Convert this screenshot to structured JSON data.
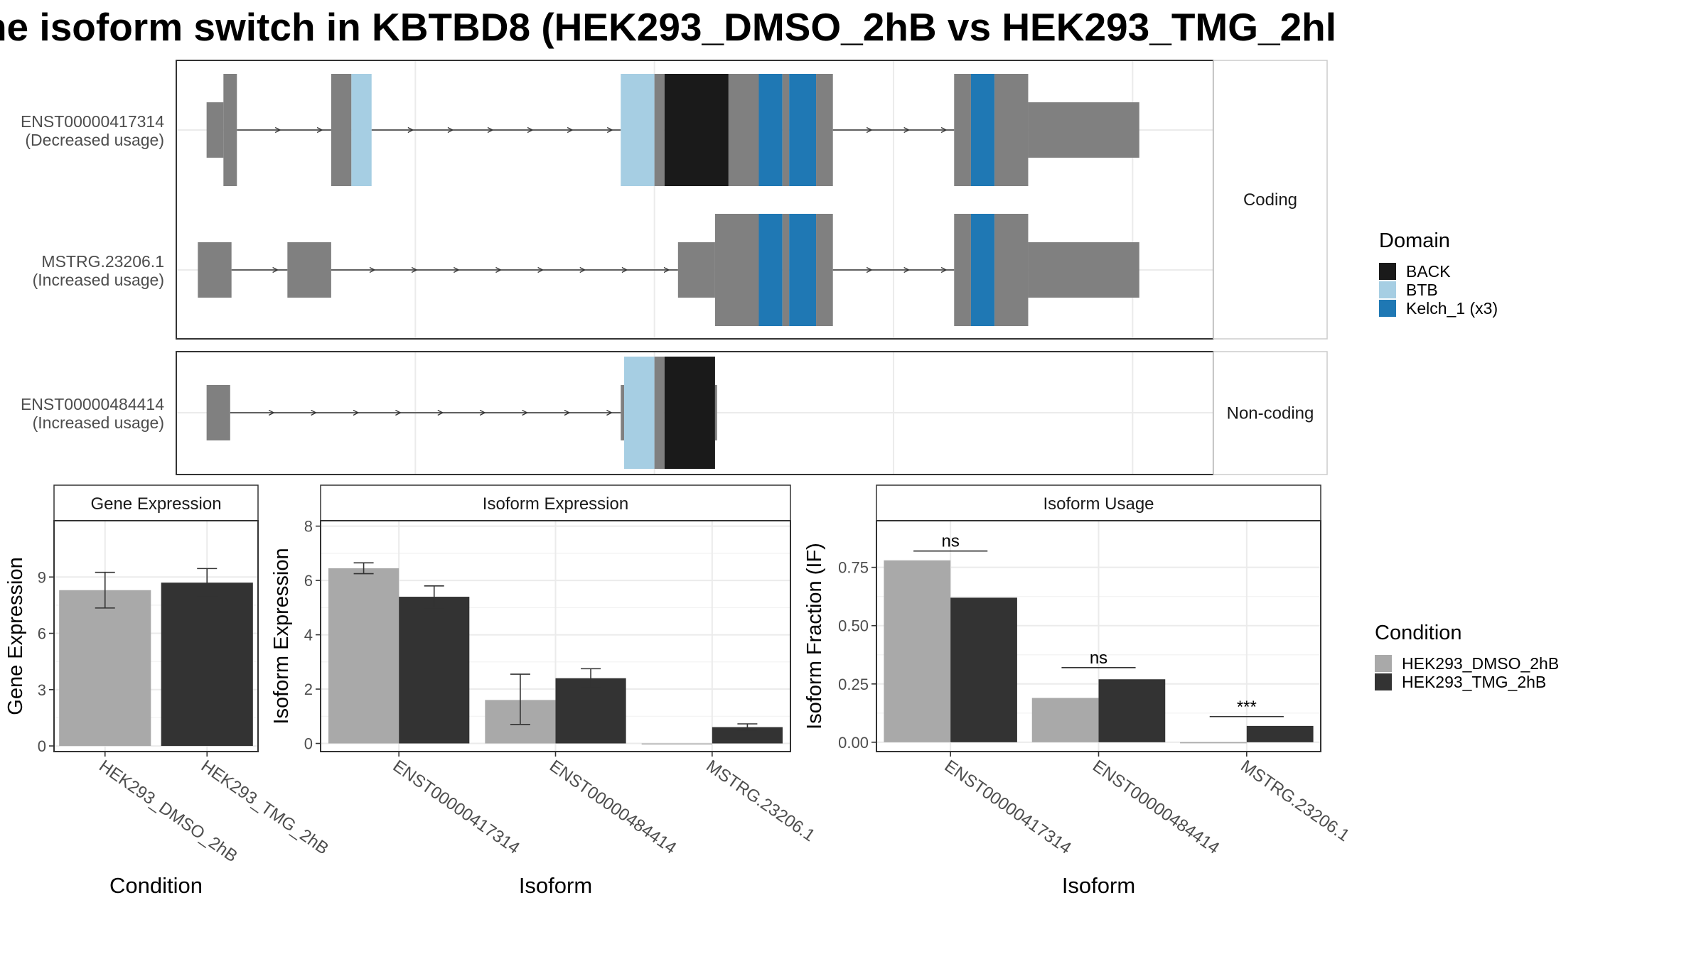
{
  "title": "ne isoform switch in KBTBD8 (HEK293_DMSO_2hB vs HEK293_TMG_2hl",
  "colors": {
    "exon": "#808080",
    "BACK": "#1a1a1a",
    "BTB": "#a6cee3",
    "Kelch_1 (x3)": "#1f78b4",
    "HEK293_DMSO_2hB": "#a9a9a9",
    "HEK293_TMG_2hB": "#333333",
    "grid": "#ebebeb",
    "border": "#333333"
  },
  "structure": {
    "panels": [
      {
        "strip": "Coding",
        "transcripts": [
          {
            "label1": "ENST00000417314",
            "label2": "(Decreased usage)",
            "segments": [
              {
                "s": 0.5,
                "e": 3.0,
                "h": "coding",
                "f": "exon"
              },
              {
                "s": 3.0,
                "e": 5.0,
                "h": "full",
                "f": "exon"
              },
              {
                "s": 19.0,
                "e": 22.0,
                "h": "full",
                "f": "exon"
              },
              {
                "s": 22.0,
                "e": 25.0,
                "h": "full",
                "f": "BTB"
              },
              {
                "s": 62.0,
                "e": 67.0,
                "h": "full",
                "f": "BTB"
              },
              {
                "s": 67.0,
                "e": 68.5,
                "h": "full",
                "f": "exon"
              },
              {
                "s": 68.5,
                "e": 78.0,
                "h": "full",
                "f": "BACK"
              },
              {
                "s": 78.0,
                "e": 82.5,
                "h": "full",
                "f": "exon"
              },
              {
                "s": 82.5,
                "e": 86.0,
                "h": "full",
                "f": "Kelch_1 (x3)"
              },
              {
                "s": 86.0,
                "e": 87.0,
                "h": "full",
                "f": "exon"
              },
              {
                "s": 87.0,
                "e": 91.0,
                "h": "full",
                "f": "Kelch_1 (x3)"
              },
              {
                "s": 91.0,
                "e": 93.5,
                "h": "full",
                "f": "exon"
              },
              {
                "s": 111.5,
                "e": 114.0,
                "h": "full",
                "f": "exon"
              },
              {
                "s": 114.0,
                "e": 117.5,
                "h": "full",
                "f": "Kelch_1 (x3)"
              },
              {
                "s": 117.5,
                "e": 122.5,
                "h": "full",
                "f": "exon"
              },
              {
                "s": 122.5,
                "e": 139.0,
                "h": "coding",
                "f": "exon"
              }
            ]
          },
          {
            "label1": "MSTRG.23206.1",
            "label2": "(Increased usage)",
            "segments": [
              {
                "s": -0.8,
                "e": 4.2,
                "h": "coding",
                "f": "exon"
              },
              {
                "s": 12.5,
                "e": 19.0,
                "h": "coding",
                "f": "exon"
              },
              {
                "s": 70.5,
                "e": 76.0,
                "h": "coding",
                "f": "exon"
              },
              {
                "s": 76.0,
                "e": 82.5,
                "h": "full",
                "f": "exon"
              },
              {
                "s": 82.5,
                "e": 86.0,
                "h": "full",
                "f": "Kelch_1 (x3)"
              },
              {
                "s": 86.0,
                "e": 87.0,
                "h": "full",
                "f": "exon"
              },
              {
                "s": 87.0,
                "e": 91.0,
                "h": "full",
                "f": "Kelch_1 (x3)"
              },
              {
                "s": 91.0,
                "e": 93.5,
                "h": "full",
                "f": "exon"
              },
              {
                "s": 111.5,
                "e": 114.0,
                "h": "full",
                "f": "exon"
              },
              {
                "s": 114.0,
                "e": 117.5,
                "h": "full",
                "f": "Kelch_1 (x3)"
              },
              {
                "s": 117.5,
                "e": 122.5,
                "h": "full",
                "f": "exon"
              },
              {
                "s": 122.5,
                "e": 139.0,
                "h": "coding",
                "f": "exon"
              }
            ]
          }
        ]
      },
      {
        "strip": "Non-coding",
        "transcripts": [
          {
            "label1": "ENST00000484414",
            "label2": "(Increased usage)",
            "segments": [
              {
                "s": 0.5,
                "e": 4.0,
                "h": "coding",
                "f": "exon"
              },
              {
                "s": 62.0,
                "e": 62.5,
                "h": "coding",
                "f": "exon"
              },
              {
                "s": 62.5,
                "e": 67.0,
                "h": "full",
                "f": "BTB"
              },
              {
                "s": 67.0,
                "e": 68.5,
                "h": "full",
                "f": "exon"
              },
              {
                "s": 68.5,
                "e": 76.0,
                "h": "full",
                "f": "BACK"
              },
              {
                "s": 76.0,
                "e": 76.3,
                "h": "coding",
                "f": "exon"
              }
            ]
          }
        ]
      }
    ]
  },
  "legend_domain": {
    "title": "Domain",
    "items": [
      {
        "label": "BACK",
        "color": "#1a1a1a"
      },
      {
        "label": "BTB",
        "color": "#a6cee3"
      },
      {
        "label": "Kelch_1 (x3)",
        "color": "#1f78b4"
      }
    ]
  },
  "legend_condition": {
    "title": "Condition",
    "items": [
      {
        "label": "HEK293_DMSO_2hB",
        "color": "#a9a9a9"
      },
      {
        "label": "HEK293_TMG_2hB",
        "color": "#333333"
      }
    ]
  },
  "chart_data": [
    {
      "type": "bar",
      "title": "Gene Expression",
      "xlabel": "Condition",
      "ylabel": "Gene Expression",
      "ylim": [
        -0.3,
        12.0
      ],
      "yticks": [
        0,
        3,
        6,
        9
      ],
      "categories": [
        "HEK293_DMSO_2hB",
        "HEK293_TMG_2hB"
      ],
      "series": [
        {
          "values": [
            8.3,
            8.7
          ],
          "err_low": [
            7.35,
            7.95
          ],
          "err_high": [
            9.25,
            9.45
          ]
        }
      ]
    },
    {
      "type": "bar",
      "title": "Isoform Expression",
      "xlabel": "Isoform",
      "ylabel": "Isoform Expression",
      "ylim": [
        -0.3,
        8.2
      ],
      "yticks": [
        0,
        2,
        4,
        6,
        8
      ],
      "categories": [
        "ENST00000417314",
        "ENST00000484414",
        "MSTRG.23206.1"
      ],
      "series": [
        {
          "name": "HEK293_DMSO_2hB",
          "values": [
            6.45,
            1.6,
            0.0
          ],
          "err_low": [
            6.25,
            0.7,
            0.0
          ],
          "err_high": [
            6.65,
            2.55,
            0.0
          ]
        },
        {
          "name": "HEK293_TMG_2hB",
          "values": [
            5.4,
            2.4,
            0.6
          ],
          "err_low": [
            5.0,
            2.05,
            0.5
          ],
          "err_high": [
            5.8,
            2.75,
            0.72
          ]
        }
      ]
    },
    {
      "type": "bar",
      "title": "Isoform Usage",
      "xlabel": "Isoform",
      "ylabel": "Isoform Fraction (IF)",
      "ylim": [
        -0.04,
        0.95
      ],
      "yticks": [
        0.0,
        0.25,
        0.5,
        0.75
      ],
      "yticklabels": [
        "0.00",
        "0.25",
        "0.50",
        "0.75"
      ],
      "categories": [
        "ENST00000417314",
        "ENST00000484414",
        "MSTRG.23206.1"
      ],
      "series": [
        {
          "name": "HEK293_DMSO_2hB",
          "values": [
            0.78,
            0.19,
            0.0
          ]
        },
        {
          "name": "HEK293_TMG_2hB",
          "values": [
            0.62,
            0.27,
            0.07
          ]
        }
      ],
      "significance": [
        {
          "category": "ENST00000417314",
          "label": "ns",
          "y": 0.82
        },
        {
          "category": "ENST00000484414",
          "label": "ns",
          "y": 0.32
        },
        {
          "category": "MSTRG.23206.1",
          "label": "***",
          "y": 0.11
        }
      ]
    }
  ]
}
